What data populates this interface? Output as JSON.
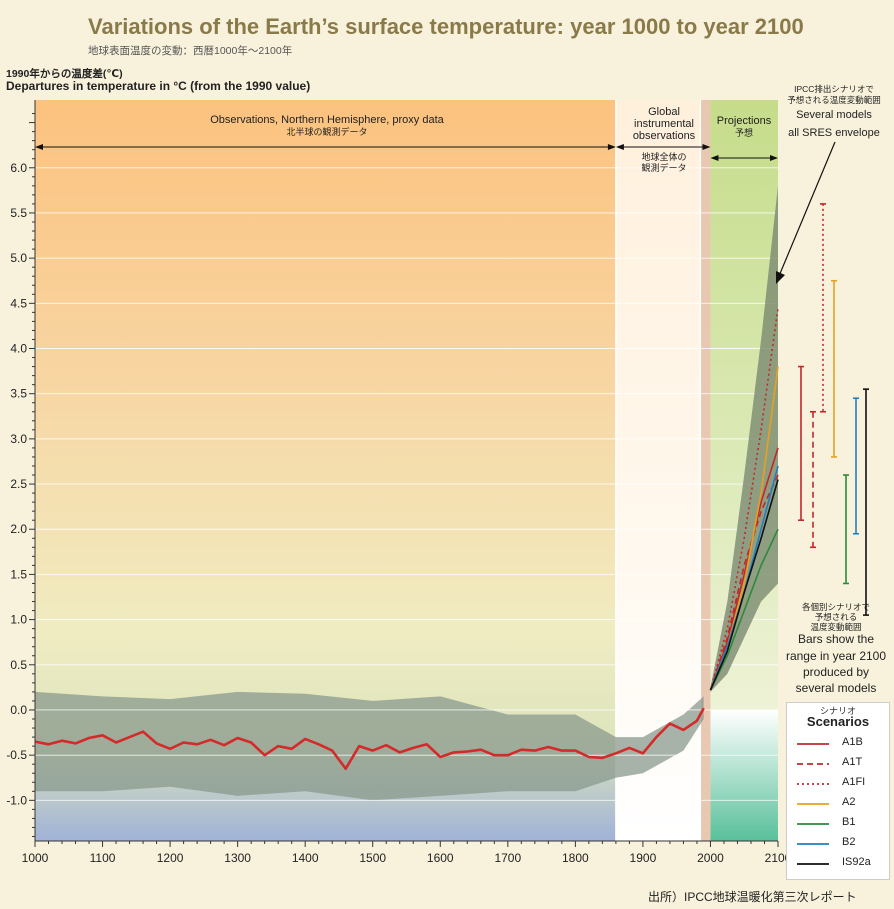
{
  "header": {
    "title": "Variations of the Earth’s surface temperature: year 1000 to year 2100",
    "subtitle_jp": "地球表面温度の変動：西暦1000年〜2100年",
    "ylabel_jp": "1990年からの温度差(℃)",
    "ylabel_en": "Departures in temperature in °C (from the 1990 value)"
  },
  "source": "出所）IPCC地球温暖化第三次レポート",
  "annotations": {
    "observations_en": "Observations, Northern Hemisphere, proxy data",
    "observations_jp": "北半球の観測データ",
    "global_en_1": "Global",
    "global_en_2": "instrumental",
    "global_en_3": "observations",
    "global_jp_1": "地球全体の",
    "global_jp_2": "観測データ",
    "projections_en": "Projections",
    "projections_jp": "予想",
    "ipcc_jp_1": "IPCC排出シナリオで",
    "ipcc_jp_2": "予想される温度変動範囲",
    "several_models": "Several models",
    "sres_envelope": "all SRES envelope",
    "bars_jp_1": "各個別シナリオで",
    "bars_jp_2": "予想される",
    "bars_jp_3": "温度変動範囲",
    "bars_en_1": "Bars show the",
    "bars_en_2": "range in year 2100",
    "bars_en_3": "produced by",
    "bars_en_4": "several models"
  },
  "legend": {
    "title_jp": "シナリオ",
    "title": "Scenarios",
    "items": [
      {
        "label": "A1B",
        "color": "#c0282d",
        "style": "solid"
      },
      {
        "label": "A1T",
        "color": "#c0282d",
        "style": "dashed"
      },
      {
        "label": "A1FI",
        "color": "#c0282d",
        "style": "dotted"
      },
      {
        "label": "A2",
        "color": "#e8a020",
        "style": "solid"
      },
      {
        "label": "B1",
        "color": "#2a8a3a",
        "style": "solid"
      },
      {
        "label": "B2",
        "color": "#2080c0",
        "style": "solid"
      },
      {
        "label": "IS92a",
        "color": "#111111",
        "style": "solid"
      }
    ]
  },
  "chart_data": {
    "type": "line",
    "title": "Variations of the Earth’s surface temperature: year 1000 to year 2100",
    "xlabel": "",
    "ylabel": "Departures in temperature in °C (from the 1990 value)",
    "xlim": [
      1000,
      2100
    ],
    "ylim": [
      -1.45,
      6.75
    ],
    "xticks": [
      1000,
      1100,
      1200,
      1300,
      1400,
      1500,
      1600,
      1700,
      1800,
      1900,
      2000,
      2100
    ],
    "yticks": [
      -1.0,
      -0.5,
      0.0,
      0.5,
      1.0,
      1.5,
      2.0,
      2.5,
      3.0,
      3.5,
      4.0,
      4.5,
      5.0,
      5.5,
      6.0
    ],
    "ytick_labels": [
      "-1.0",
      "-0.5",
      "0.0",
      "0.5",
      "1.0",
      "1.5",
      "2.0",
      "2.5",
      "3.0",
      "3.5",
      "4.0",
      "4.5",
      "5.0",
      "5.5",
      "6.0"
    ],
    "periods": [
      {
        "name": "Observations, Northern Hemisphere, proxy data",
        "from": 1000,
        "to": 1860
      },
      {
        "name": "Global instrumental observations",
        "from": 1860,
        "to": 2000
      },
      {
        "name": "Projections",
        "from": 2000,
        "to": 2100
      }
    ],
    "series": [
      {
        "name": "Northern Hemisphere (proxy + instrumental)",
        "color": "#d42a2a",
        "x": [
          1000,
          1020,
          1040,
          1060,
          1080,
          1100,
          1120,
          1140,
          1160,
          1180,
          1200,
          1220,
          1240,
          1260,
          1280,
          1300,
          1320,
          1340,
          1360,
          1380,
          1400,
          1420,
          1440,
          1460,
          1480,
          1500,
          1520,
          1540,
          1560,
          1580,
          1600,
          1620,
          1640,
          1660,
          1680,
          1700,
          1720,
          1740,
          1760,
          1780,
          1800,
          1820,
          1840,
          1860,
          1880,
          1900,
          1920,
          1940,
          1960,
          1980,
          1990
        ],
        "values": [
          -0.35,
          -0.38,
          -0.34,
          -0.37,
          -0.31,
          -0.28,
          -0.36,
          -0.3,
          -0.24,
          -0.37,
          -0.43,
          -0.36,
          -0.38,
          -0.33,
          -0.39,
          -0.31,
          -0.36,
          -0.5,
          -0.4,
          -0.43,
          -0.32,
          -0.38,
          -0.45,
          -0.65,
          -0.4,
          -0.45,
          -0.39,
          -0.47,
          -0.42,
          -0.38,
          -0.52,
          -0.47,
          -0.46,
          -0.44,
          -0.5,
          -0.5,
          -0.44,
          -0.45,
          -0.41,
          -0.45,
          -0.45,
          -0.52,
          -0.53,
          -0.48,
          -0.42,
          -0.48,
          -0.3,
          -0.15,
          -0.22,
          -0.12,
          0.02
        ]
      },
      {
        "name": "A1B",
        "color": "#c0282d",
        "style": "solid",
        "x": [
          2000,
          2025,
          2050,
          2075,
          2100
        ],
        "values": [
          0.22,
          0.75,
          1.5,
          2.3,
          2.9
        ]
      },
      {
        "name": "A1T",
        "color": "#c0282d",
        "style": "dashed",
        "x": [
          2000,
          2025,
          2050,
          2075,
          2100
        ],
        "values": [
          0.22,
          0.8,
          1.6,
          2.2,
          2.6
        ]
      },
      {
        "name": "A1FI",
        "color": "#c0282d",
        "style": "dotted",
        "x": [
          2000,
          2025,
          2050,
          2075,
          2100
        ],
        "values": [
          0.22,
          0.9,
          1.9,
          3.1,
          4.45
        ]
      },
      {
        "name": "A2",
        "color": "#e8a020",
        "style": "solid",
        "x": [
          2000,
          2025,
          2050,
          2075,
          2100
        ],
        "values": [
          0.22,
          0.7,
          1.4,
          2.4,
          3.8
        ]
      },
      {
        "name": "B1",
        "color": "#2a8a3a",
        "style": "solid",
        "x": [
          2000,
          2025,
          2050,
          2075,
          2100
        ],
        "values": [
          0.22,
          0.6,
          1.1,
          1.6,
          2.0
        ]
      },
      {
        "name": "B2",
        "color": "#2080c0",
        "style": "solid",
        "x": [
          2000,
          2025,
          2050,
          2075,
          2100
        ],
        "values": [
          0.22,
          0.7,
          1.3,
          2.0,
          2.7
        ]
      },
      {
        "name": "IS92a",
        "color": "#111111",
        "style": "solid",
        "x": [
          2000,
          2025,
          2050,
          2075,
          2100
        ],
        "values": [
          0.22,
          0.65,
          1.3,
          1.9,
          2.55
        ]
      }
    ],
    "uncertainty_band": {
      "name": "Observations uncertainty range",
      "x": [
        1000,
        1100,
        1200,
        1300,
        1400,
        1500,
        1600,
        1700,
        1800,
        1860,
        1900,
        1960,
        1990
      ],
      "upper": [
        0.2,
        0.15,
        0.12,
        0.2,
        0.18,
        0.1,
        0.15,
        -0.05,
        -0.05,
        -0.3,
        -0.3,
        -0.05,
        0.15
      ],
      "lower": [
        -0.9,
        -0.9,
        -0.85,
        -0.95,
        -0.9,
        -1.0,
        -0.95,
        -0.9,
        -0.9,
        -0.75,
        -0.7,
        -0.45,
        -0.1
      ]
    },
    "sres_envelope": {
      "name": "Several models all SRES envelope",
      "x": [
        2000,
        2025,
        2050,
        2075,
        2100
      ],
      "upper": [
        0.25,
        1.2,
        2.6,
        4.1,
        5.8
      ],
      "lower": [
        0.2,
        0.4,
        0.8,
        1.2,
        1.4
      ]
    },
    "range_bars_2100": [
      {
        "scenario": "A1B",
        "color": "#c0282d",
        "style": "solid",
        "low": 2.1,
        "high": 3.8
      },
      {
        "scenario": "A1T",
        "color": "#c0282d",
        "style": "dashed",
        "low": 1.8,
        "high": 3.3
      },
      {
        "scenario": "A1FI",
        "color": "#c0282d",
        "style": "dotted",
        "low": 3.3,
        "high": 5.6
      },
      {
        "scenario": "A2",
        "color": "#e8a020",
        "style": "solid",
        "low": 2.8,
        "high": 4.75
      },
      {
        "scenario": "B1",
        "color": "#2a8a3a",
        "style": "solid",
        "low": 1.4,
        "high": 2.6
      },
      {
        "scenario": "B2",
        "color": "#2080c0",
        "style": "solid",
        "low": 1.95,
        "high": 3.45
      },
      {
        "scenario": "IS92a",
        "color": "#111111",
        "style": "solid",
        "low": 1.05,
        "high": 3.55
      }
    ]
  }
}
